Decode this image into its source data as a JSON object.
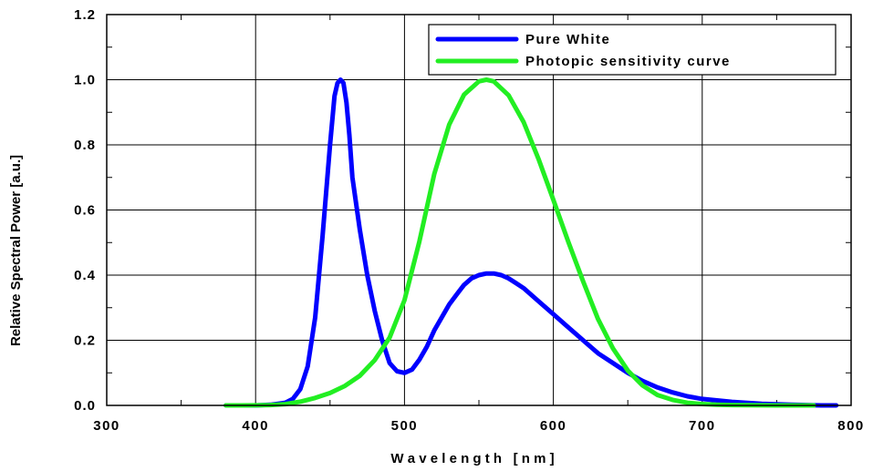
{
  "chart_data": {
    "type": "line",
    "title": "",
    "xlabel": "W a v e l e n g t h   [ n m ]",
    "ylabel": "Relative Spectral Power [a.u.]",
    "xlim": [
      300,
      800
    ],
    "ylim": [
      0,
      1.2
    ],
    "xticks": [
      300,
      400,
      500,
      600,
      700,
      800
    ],
    "xtick_labels": [
      "300",
      "400",
      "500",
      "600",
      "700",
      "800"
    ],
    "yticks": [
      0,
      0.2,
      0.4,
      0.6,
      0.8,
      1.0,
      1.2
    ],
    "ytick_labels": [
      "0.0",
      "0.2",
      "0.4",
      "0.6",
      "0.8",
      "1.0",
      "1.2"
    ],
    "grid": true,
    "legend_position": "top-right",
    "series": [
      {
        "name": "Pure White",
        "color": "#0000ff",
        "x": [
          380,
          400,
          410,
          420,
          425,
          430,
          435,
          440,
          445,
          450,
          453,
          455,
          457,
          459,
          461,
          463,
          465,
          470,
          475,
          480,
          485,
          490,
          495,
          500,
          505,
          510,
          515,
          520,
          525,
          530,
          535,
          540,
          545,
          550,
          555,
          560,
          565,
          570,
          575,
          580,
          590,
          600,
          610,
          620,
          630,
          640,
          650,
          660,
          670,
          680,
          690,
          700,
          720,
          740,
          760,
          780,
          790
        ],
        "values": [
          0.0,
          0.0,
          0.002,
          0.008,
          0.02,
          0.05,
          0.12,
          0.27,
          0.52,
          0.8,
          0.95,
          0.99,
          1.0,
          0.99,
          0.93,
          0.83,
          0.7,
          0.54,
          0.4,
          0.29,
          0.2,
          0.13,
          0.105,
          0.1,
          0.11,
          0.14,
          0.18,
          0.23,
          0.27,
          0.31,
          0.34,
          0.37,
          0.39,
          0.4,
          0.405,
          0.405,
          0.4,
          0.39,
          0.375,
          0.36,
          0.32,
          0.28,
          0.24,
          0.2,
          0.16,
          0.13,
          0.1,
          0.075,
          0.055,
          0.04,
          0.028,
          0.02,
          0.011,
          0.005,
          0.002,
          0.0,
          0.0
        ]
      },
      {
        "name": "Photopic sensitivity curve",
        "color": "#22ee22",
        "x": [
          380,
          390,
          400,
          410,
          420,
          430,
          440,
          450,
          460,
          470,
          480,
          490,
          500,
          510,
          520,
          530,
          540,
          550,
          555,
          560,
          570,
          580,
          590,
          600,
          610,
          620,
          630,
          640,
          650,
          660,
          670,
          680,
          690,
          700,
          710,
          720,
          730,
          740,
          750,
          760,
          770,
          775
        ],
        "values": [
          0.0,
          0.0001,
          0.0004,
          0.0012,
          0.004,
          0.0116,
          0.023,
          0.038,
          0.06,
          0.091,
          0.139,
          0.208,
          0.323,
          0.503,
          0.71,
          0.862,
          0.954,
          0.995,
          1.0,
          0.995,
          0.952,
          0.87,
          0.757,
          0.631,
          0.503,
          0.381,
          0.265,
          0.175,
          0.107,
          0.061,
          0.032,
          0.017,
          0.0082,
          0.0041,
          0.0021,
          0.001,
          0.0005,
          0.0002,
          0.0001,
          0.0,
          0.0,
          0.0
        ]
      }
    ]
  }
}
